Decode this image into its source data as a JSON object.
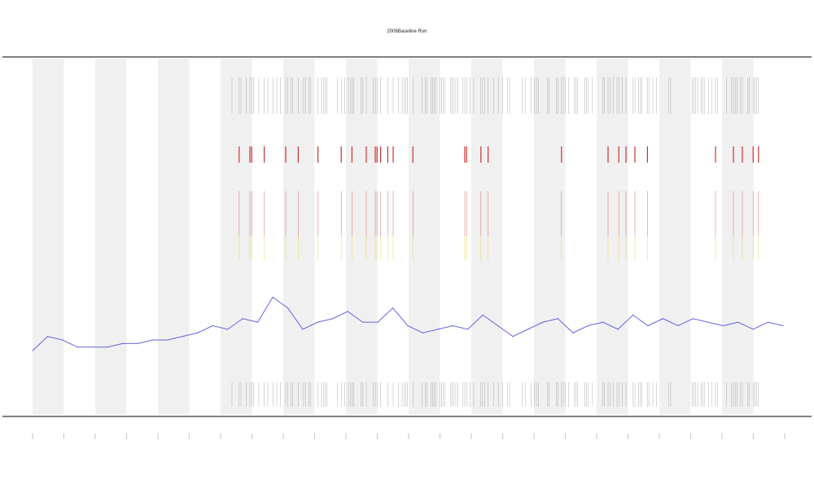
{
  "chart_data": {
    "type": "line",
    "title": "2006Baseline Run",
    "xlabel": "",
    "ylabel": "",
    "grid": false,
    "legend": "none",
    "x_ticks": [
      "",
      "",
      "",
      "",
      "",
      "",
      "",
      "",
      "",
      "",
      "",
      "",
      "",
      "",
      "",
      "",
      "",
      "",
      "",
      "",
      "",
      "",
      "",
      "",
      "",
      ""
    ],
    "y_ticks": [],
    "bottom_left_label": "",
    "alternating_bands": true,
    "band_color": "#f0f0f0",
    "series": [
      {
        "color": "#4040dd",
        "x": [
          0.0,
          0.5,
          1.0,
          1.5,
          2.0,
          2.5,
          3.0,
          3.5,
          4.0,
          4.5,
          5.0,
          5.5,
          6.0,
          6.5,
          7.0,
          7.5,
          8.0,
          8.5,
          9.0,
          9.5,
          10.0,
          10.5,
          11.0,
          11.5,
          12.0,
          12.5,
          13.0,
          13.5,
          14.0,
          14.5,
          15.0,
          15.5,
          16.0,
          16.5,
          17.0,
          17.5,
          18.0,
          18.5,
          19.0,
          19.5,
          20.0,
          20.5,
          21.0,
          21.5,
          22.0,
          22.5,
          23.0,
          23.5,
          24.0,
          24.5,
          25.0
        ],
        "values": [
          0.18,
          0.22,
          0.21,
          0.19,
          0.19,
          0.19,
          0.2,
          0.2,
          0.21,
          0.21,
          0.22,
          0.23,
          0.25,
          0.24,
          0.27,
          0.26,
          0.33,
          0.3,
          0.24,
          0.26,
          0.27,
          0.29,
          0.26,
          0.26,
          0.3,
          0.25,
          0.23,
          0.24,
          0.25,
          0.24,
          0.28,
          0.25,
          0.22,
          0.24,
          0.26,
          0.27,
          0.23,
          0.25,
          0.26,
          0.24,
          0.28,
          0.25,
          0.27,
          0.25,
          0.27,
          0.26,
          0.25,
          0.26,
          0.24,
          0.26,
          0.25
        ]
      }
    ],
    "event_color_top": "#c83232",
    "event_color_mid": "#e6dc64",
    "event_color_tick": "#555555"
  }
}
